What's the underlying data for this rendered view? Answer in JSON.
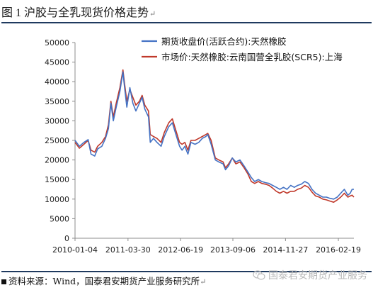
{
  "header": {
    "title": "图 1  沪胶与全乳现货价格走势",
    "return_mark": "↵"
  },
  "footer": {
    "source": "资料来源：Wind，国泰君安期货产业服务研究所",
    "return_mark": "↵",
    "watermark": "国泰君安期货产业服务",
    "watermark_icon": "wechat-icon"
  },
  "colors": {
    "futures": "#4472c4",
    "spot": "#c0392b",
    "divider": "#1f3a5f"
  },
  "chart_data": {
    "type": "line",
    "title": "",
    "xlabel": "",
    "ylabel": "",
    "ylim": [
      0,
      50000
    ],
    "yticks": [
      0,
      5000,
      10000,
      15000,
      20000,
      25000,
      30000,
      35000,
      40000,
      45000,
      50000
    ],
    "ytick_labels": [
      "0",
      "5000",
      "10000",
      "15000",
      "20000",
      "25000",
      "30000",
      "35000",
      "40000",
      "45000",
      "50000"
    ],
    "xlim": [
      "2010-01-04",
      "2016-06-30"
    ],
    "xticks": [
      "2010-01-04",
      "2011-03-30",
      "2012-06-19",
      "2013-09-06",
      "2014-11-27",
      "2016-02-19"
    ],
    "grid": false,
    "legend": "top-right",
    "series": [
      {
        "name": "期货收盘价(活跃合约):天然橡胶",
        "color": "#4472c4",
        "points": [
          [
            "2010-01-04",
            25000
          ],
          [
            "2010-02-10",
            23500
          ],
          [
            "2010-03-20",
            24500
          ],
          [
            "2010-04-25",
            25200
          ],
          [
            "2010-05-20",
            21500
          ],
          [
            "2010-06-20",
            21000
          ],
          [
            "2010-07-15",
            22800
          ],
          [
            "2010-08-20",
            23500
          ],
          [
            "2010-09-20",
            25500
          ],
          [
            "2010-10-15",
            28000
          ],
          [
            "2010-11-05",
            34500
          ],
          [
            "2010-11-25",
            30000
          ],
          [
            "2010-12-20",
            33500
          ],
          [
            "2011-01-20",
            37500
          ],
          [
            "2011-02-15",
            42500
          ],
          [
            "2011-03-01",
            38500
          ],
          [
            "2011-03-20",
            33500
          ],
          [
            "2011-04-15",
            38500
          ],
          [
            "2011-05-10",
            34500
          ],
          [
            "2011-06-05",
            32500
          ],
          [
            "2011-07-05",
            34500
          ],
          [
            "2011-07-28",
            36000
          ],
          [
            "2011-08-20",
            33000
          ],
          [
            "2011-09-20",
            31000
          ],
          [
            "2011-10-05",
            24500
          ],
          [
            "2011-11-01",
            25500
          ],
          [
            "2011-12-01",
            24500
          ],
          [
            "2012-01-05",
            23500
          ],
          [
            "2012-02-01",
            26000
          ],
          [
            "2012-03-10",
            28500
          ],
          [
            "2012-04-10",
            29500
          ],
          [
            "2012-05-05",
            27000
          ],
          [
            "2012-06-10",
            23500
          ],
          [
            "2012-07-01",
            22500
          ],
          [
            "2012-07-25",
            23500
          ],
          [
            "2012-08-20",
            21500
          ],
          [
            "2012-09-15",
            24500
          ],
          [
            "2012-10-20",
            24000
          ],
          [
            "2012-11-20",
            24500
          ],
          [
            "2012-12-20",
            25500
          ],
          [
            "2013-01-20",
            26000
          ],
          [
            "2013-02-05",
            26500
          ],
          [
            "2013-03-05",
            24000
          ],
          [
            "2013-04-10",
            20000
          ],
          [
            "2013-05-10",
            19500
          ],
          [
            "2013-06-15",
            19000
          ],
          [
            "2013-07-05",
            17500
          ],
          [
            "2013-08-01",
            18500
          ],
          [
            "2013-09-01",
            20500
          ],
          [
            "2013-10-01",
            19500
          ],
          [
            "2013-11-05",
            20000
          ],
          [
            "2013-12-10",
            18500
          ],
          [
            "2014-01-10",
            17000
          ],
          [
            "2014-02-10",
            15500
          ],
          [
            "2014-03-10",
            14500
          ],
          [
            "2014-04-10",
            15000
          ],
          [
            "2014-05-10",
            14500
          ],
          [
            "2014-06-10",
            14200
          ],
          [
            "2014-07-10",
            14000
          ],
          [
            "2014-08-10",
            13500
          ],
          [
            "2014-09-10",
            13000
          ],
          [
            "2014-10-10",
            12500
          ],
          [
            "2014-11-10",
            13000
          ],
          [
            "2014-12-10",
            12500
          ],
          [
            "2015-01-10",
            13500
          ],
          [
            "2015-02-10",
            13000
          ],
          [
            "2015-03-10",
            13500
          ],
          [
            "2015-04-10",
            13800
          ],
          [
            "2015-05-10",
            14500
          ],
          [
            "2015-06-10",
            14000
          ],
          [
            "2015-07-10",
            12500
          ],
          [
            "2015-08-10",
            11500
          ],
          [
            "2015-09-10",
            11000
          ],
          [
            "2015-10-10",
            10500
          ],
          [
            "2015-11-10",
            10500
          ],
          [
            "2015-12-10",
            10200
          ],
          [
            "2016-01-10",
            10000
          ],
          [
            "2016-02-10",
            10500
          ],
          [
            "2016-03-10",
            11500
          ],
          [
            "2016-04-10",
            12500
          ],
          [
            "2016-05-10",
            11000
          ],
          [
            "2016-05-30",
            11500
          ],
          [
            "2016-06-15",
            12500
          ],
          [
            "2016-06-30",
            12500
          ]
        ]
      },
      {
        "name": "市场价:天然橡胶:云南国营全乳胶(SCR5):上海",
        "color": "#c0392b",
        "points": [
          [
            "2010-01-04",
            24500
          ],
          [
            "2010-02-10",
            23000
          ],
          [
            "2010-03-20",
            24000
          ],
          [
            "2010-04-25",
            25000
          ],
          [
            "2010-05-20",
            22500
          ],
          [
            "2010-06-20",
            22000
          ],
          [
            "2010-07-15",
            23500
          ],
          [
            "2010-08-20",
            24500
          ],
          [
            "2010-09-20",
            26000
          ],
          [
            "2010-10-15",
            29000
          ],
          [
            "2010-11-05",
            35000
          ],
          [
            "2010-11-25",
            31000
          ],
          [
            "2010-12-20",
            34500
          ],
          [
            "2011-01-20",
            38500
          ],
          [
            "2011-02-15",
            43000
          ],
          [
            "2011-03-01",
            39500
          ],
          [
            "2011-03-20",
            35000
          ],
          [
            "2011-04-15",
            38000
          ],
          [
            "2011-05-10",
            36000
          ],
          [
            "2011-06-05",
            34000
          ],
          [
            "2011-07-05",
            35000
          ],
          [
            "2011-07-28",
            36500
          ],
          [
            "2011-08-20",
            34000
          ],
          [
            "2011-09-20",
            32500
          ],
          [
            "2011-10-05",
            26500
          ],
          [
            "2011-11-01",
            26000
          ],
          [
            "2011-12-01",
            25500
          ],
          [
            "2012-01-05",
            24500
          ],
          [
            "2012-02-01",
            27000
          ],
          [
            "2012-03-10",
            29500
          ],
          [
            "2012-04-10",
            30500
          ],
          [
            "2012-05-05",
            28000
          ],
          [
            "2012-06-10",
            24500
          ],
          [
            "2012-07-01",
            24000
          ],
          [
            "2012-07-25",
            24500
          ],
          [
            "2012-08-20",
            22500
          ],
          [
            "2012-09-15",
            25000
          ],
          [
            "2012-10-20",
            25000
          ],
          [
            "2012-11-20",
            25500
          ],
          [
            "2012-12-20",
            26000
          ],
          [
            "2013-01-20",
            26500
          ],
          [
            "2013-02-05",
            26800
          ],
          [
            "2013-03-05",
            25000
          ],
          [
            "2013-04-10",
            20500
          ],
          [
            "2013-05-10",
            20000
          ],
          [
            "2013-06-15",
            19500
          ],
          [
            "2013-07-05",
            18000
          ],
          [
            "2013-08-01",
            19000
          ],
          [
            "2013-09-01",
            20500
          ],
          [
            "2013-10-01",
            19000
          ],
          [
            "2013-11-05",
            19500
          ],
          [
            "2013-12-10",
            18000
          ],
          [
            "2014-01-10",
            16500
          ],
          [
            "2014-02-10",
            14500
          ],
          [
            "2014-03-10",
            14000
          ],
          [
            "2014-04-10",
            14500
          ],
          [
            "2014-05-10",
            14000
          ],
          [
            "2014-06-10",
            13800
          ],
          [
            "2014-07-10",
            13500
          ],
          [
            "2014-08-10",
            12800
          ],
          [
            "2014-09-10",
            12000
          ],
          [
            "2014-10-10",
            11500
          ],
          [
            "2014-11-10",
            12000
          ],
          [
            "2014-12-10",
            11500
          ],
          [
            "2015-01-10",
            12000
          ],
          [
            "2015-02-10",
            12000
          ],
          [
            "2015-03-10",
            12500
          ],
          [
            "2015-04-10",
            12800
          ],
          [
            "2015-05-10",
            13500
          ],
          [
            "2015-06-10",
            13000
          ],
          [
            "2015-07-10",
            11800
          ],
          [
            "2015-08-10",
            10800
          ],
          [
            "2015-09-10",
            10500
          ],
          [
            "2015-10-10",
            10000
          ],
          [
            "2015-11-10",
            9800
          ],
          [
            "2015-12-10",
            9500
          ],
          [
            "2016-01-10",
            9200
          ],
          [
            "2016-02-10",
            9800
          ],
          [
            "2016-03-10",
            10500
          ],
          [
            "2016-04-10",
            11500
          ],
          [
            "2016-05-10",
            10500
          ],
          [
            "2016-05-30",
            10800
          ],
          [
            "2016-06-15",
            11000
          ],
          [
            "2016-06-30",
            10500
          ]
        ]
      }
    ]
  }
}
